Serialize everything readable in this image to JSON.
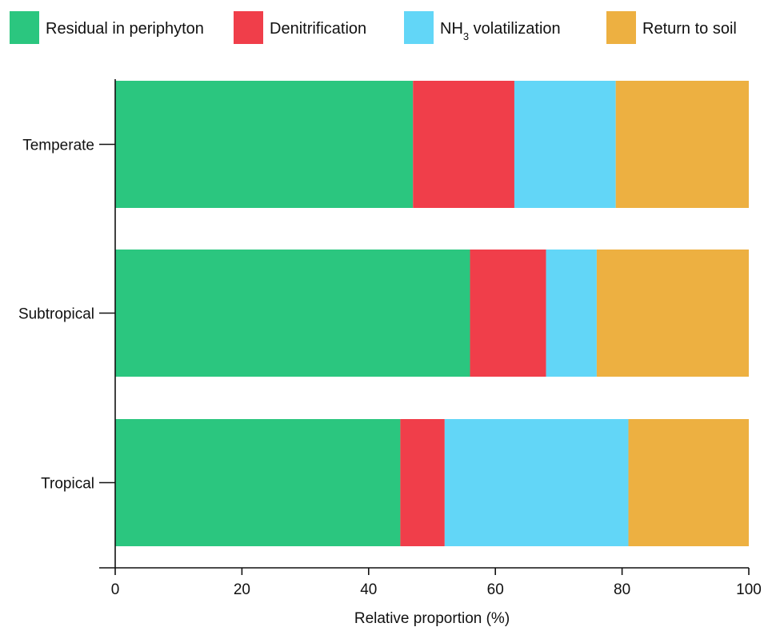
{
  "chart_data": {
    "type": "bar",
    "orientation": "horizontal",
    "stacked": true,
    "title": "",
    "xlabel": "Relative proportion (%)",
    "ylabel": "",
    "xlim": [
      0,
      100
    ],
    "xticks": [
      0,
      20,
      40,
      60,
      80,
      100
    ],
    "categories": [
      "Temperate",
      "Subtropical",
      "Tropical"
    ],
    "series": [
      {
        "name": "Residual in periphyton",
        "legend_main": "Residual in periphyton",
        "legend_sub": "",
        "legend_tail": "",
        "color": "#2bc67f",
        "values": [
          47,
          56,
          45
        ]
      },
      {
        "name": "Denitrification",
        "legend_main": "Denitrification",
        "legend_sub": "",
        "legend_tail": "",
        "color": "#f03e4a",
        "values": [
          16,
          12,
          7
        ]
      },
      {
        "name": "NH3 volatilization",
        "legend_main": "NH",
        "legend_sub": "3",
        "legend_tail": " volatilization",
        "color": "#62d6f7",
        "values": [
          16,
          8,
          29
        ]
      },
      {
        "name": "Return to soil",
        "legend_main": "Return to soil",
        "legend_sub": "",
        "legend_tail": "",
        "color": "#edb041",
        "values": [
          21,
          24,
          19
        ]
      }
    ],
    "legend_position": "top",
    "grid": false
  }
}
